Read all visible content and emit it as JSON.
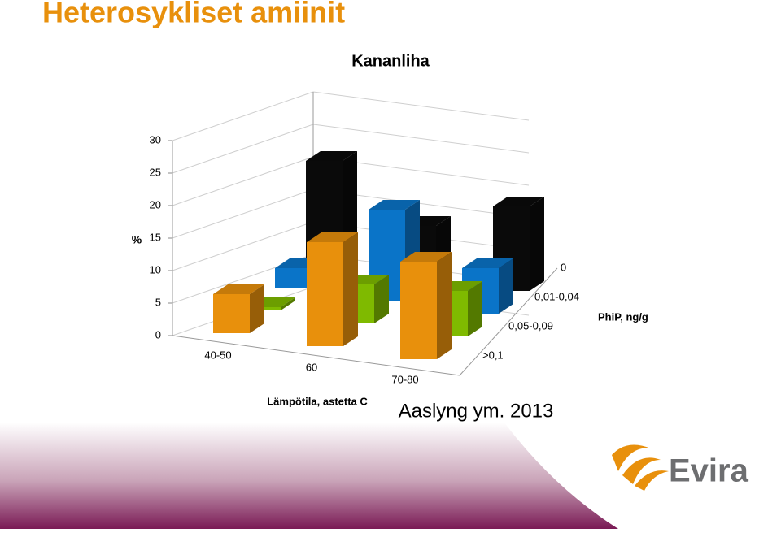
{
  "slide": {
    "title": "Heterosykliset amiinit",
    "source": "Aaslyng ym. 2013",
    "logo": "Evira"
  },
  "chart_data": {
    "type": "bar3d",
    "title": "Kananliha",
    "y_label": "%",
    "x_label": "Lämpötila, astetta C",
    "z_label": "PhiP, ng/g",
    "categories": [
      "40-50",
      "60",
      "70-80"
    ],
    "series": [
      {
        "name": "0",
        "color": "#0a0a0a",
        "values": [
          16,
          8,
          13
        ]
      },
      {
        "name": "0,01-0,04",
        "color": "#0a74c8",
        "values": [
          3,
          14,
          7
        ]
      },
      {
        "name": "0,05-0,09",
        "color": "#7fba00",
        "values": [
          0.5,
          6,
          7
        ]
      },
      {
        "name": ">0,1",
        "color": "#e8900c",
        "values": [
          6,
          16,
          15
        ]
      }
    ],
    "ylim": [
      0,
      30
    ],
    "yticks": [
      0,
      5,
      10,
      15,
      20,
      25,
      30
    ],
    "grid": true
  }
}
